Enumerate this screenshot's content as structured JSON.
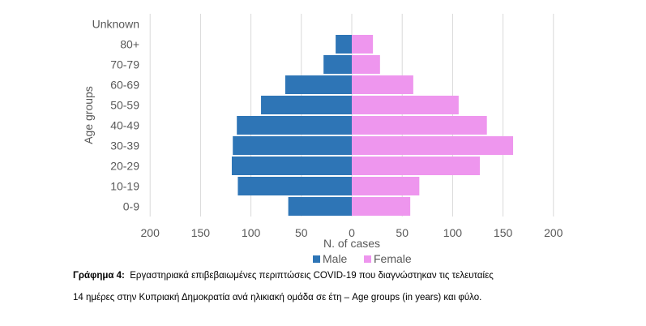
{
  "chart_data": {
    "type": "bar",
    "orientation": "horizontal-population-pyramid",
    "categories": [
      "0-9",
      "10-19",
      "20-29",
      "30-39",
      "40-49",
      "50-59",
      "60-69",
      "70-79",
      "80+",
      "Unknown"
    ],
    "series": [
      {
        "name": "Male",
        "values": [
          63,
          113,
          119,
          118,
          114,
          90,
          66,
          28,
          16,
          0
        ],
        "color": "#2e75b6"
      },
      {
        "name": "Female",
        "values": [
          58,
          67,
          127,
          160,
          134,
          106,
          61,
          28,
          21,
          0
        ],
        "color": "#ee96ee"
      }
    ],
    "xlabel": "N. of cases",
    "ylabel": "Age groups",
    "xticks": [
      "200",
      "150",
      "100",
      "50",
      "0",
      "50",
      "100",
      "150",
      "200"
    ],
    "xlim": [
      -200,
      200
    ],
    "grid": true,
    "legend_position": "bottom"
  },
  "caption": {
    "label": "Γράφημα 4:",
    "line1": "Εργαστηριακά επιβεβαιωμένες περιπτώσεις COVID-19 που διαγνώστηκαν τις τελευταίες",
    "line2": "14 ημέρες στην Κυπριακή Δημοκρατία ανά ηλικιακή ομάδα σε έτη – Age groups (in years) και φύλο."
  }
}
